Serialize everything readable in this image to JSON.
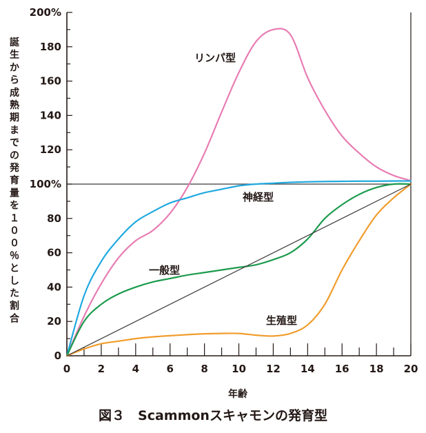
{
  "chart_data": {
    "type": "line",
    "title": "図３　Scammonスキャモンの発育型",
    "xlabel": "年齢",
    "ylabel": "誕生から成熟期までの発育量を１００％とした割合",
    "xlim": [
      0,
      20
    ],
    "ylim": [
      0,
      200
    ],
    "x_ticks": [
      "0",
      "2",
      "4",
      "6",
      "8",
      "10",
      "12",
      "14",
      "16",
      "18",
      "20"
    ],
    "y_ticks": [
      "0",
      "20",
      "40",
      "60",
      "80",
      "100%",
      "120",
      "140",
      "160",
      "180",
      "200%"
    ],
    "grid": false,
    "reference_line": 100,
    "series": [
      {
        "name": "リンパ型",
        "color": "#e87cb3",
        "points": [
          [
            0,
            0
          ],
          [
            1,
            23
          ],
          [
            2,
            42
          ],
          [
            3,
            57
          ],
          [
            4,
            67
          ],
          [
            5,
            73
          ],
          [
            6,
            83
          ],
          [
            7,
            98
          ],
          [
            8,
            118
          ],
          [
            9,
            142
          ],
          [
            10,
            165
          ],
          [
            11,
            183
          ],
          [
            12,
            190
          ],
          [
            13,
            187
          ],
          [
            14,
            162
          ],
          [
            15,
            143
          ],
          [
            16,
            128
          ],
          [
            17,
            118
          ],
          [
            18,
            110
          ],
          [
            19,
            105
          ],
          [
            20,
            102
          ]
        ]
      },
      {
        "name": "神経型",
        "color": "#1fa8df",
        "points": [
          [
            0,
            0
          ],
          [
            1,
            35
          ],
          [
            2,
            55
          ],
          [
            3,
            68
          ],
          [
            4,
            78
          ],
          [
            5,
            84
          ],
          [
            6,
            89
          ],
          [
            7,
            92
          ],
          [
            8,
            95
          ],
          [
            9,
            97
          ],
          [
            10,
            99
          ],
          [
            11,
            100
          ],
          [
            12,
            100.5
          ],
          [
            13,
            101
          ],
          [
            14,
            101.3
          ],
          [
            15,
            101.5
          ],
          [
            16,
            101.6
          ],
          [
            17,
            101.7
          ],
          [
            18,
            101.7
          ],
          [
            19,
            101.8
          ],
          [
            20,
            101.8
          ]
        ]
      },
      {
        "name": "一般型",
        "color": "#1b9a4c",
        "points": [
          [
            0,
            0
          ],
          [
            1,
            20
          ],
          [
            2,
            30
          ],
          [
            3,
            36
          ],
          [
            4,
            40
          ],
          [
            5,
            43
          ],
          [
            6,
            45
          ],
          [
            7,
            47
          ],
          [
            8,
            48.5
          ],
          [
            9,
            50
          ],
          [
            10,
            51.5
          ],
          [
            11,
            53
          ],
          [
            12,
            56
          ],
          [
            13,
            60
          ],
          [
            14,
            68
          ],
          [
            15,
            80
          ],
          [
            16,
            88
          ],
          [
            17,
            94
          ],
          [
            18,
            98
          ],
          [
            19,
            100
          ],
          [
            20,
            100
          ]
        ]
      },
      {
        "name": "生殖型",
        "color": "#f19c2b",
        "points": [
          [
            0,
            0
          ],
          [
            1,
            4
          ],
          [
            2,
            7
          ],
          [
            3,
            8.5
          ],
          [
            4,
            10
          ],
          [
            5,
            11
          ],
          [
            6,
            11.7
          ],
          [
            7,
            12.3
          ],
          [
            8,
            12.8
          ],
          [
            9,
            13
          ],
          [
            10,
            13
          ],
          [
            11,
            12
          ],
          [
            12,
            11.5
          ],
          [
            13,
            13
          ],
          [
            14,
            18
          ],
          [
            15,
            30
          ],
          [
            16,
            50
          ],
          [
            17,
            67
          ],
          [
            18,
            82
          ],
          [
            19,
            92
          ],
          [
            20,
            100
          ]
        ]
      },
      {
        "name": "",
        "color": "#3a3a3a",
        "points": [
          [
            0,
            0
          ],
          [
            20,
            100
          ]
        ]
      }
    ]
  },
  "colors": {
    "axis": "#231815",
    "reference": "#3a3a3a",
    "text": "#231815"
  }
}
